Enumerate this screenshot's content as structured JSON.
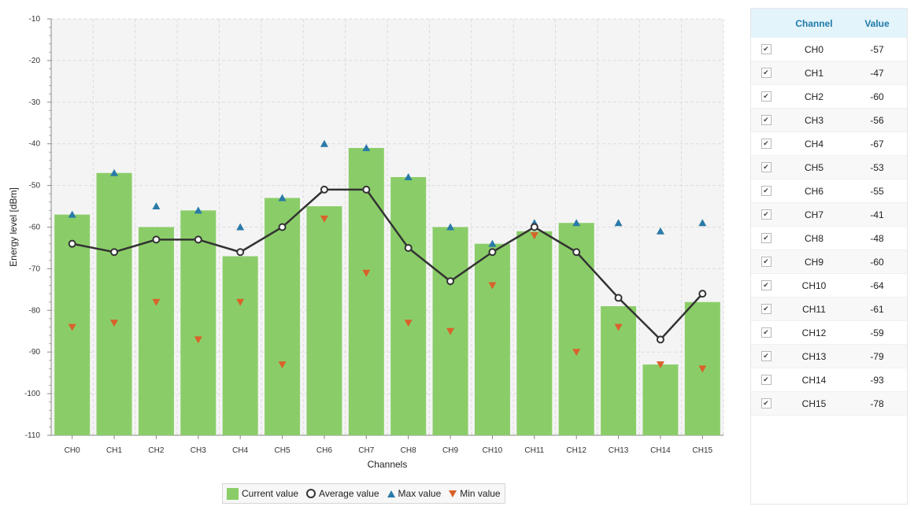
{
  "chart_data": {
    "type": "bar",
    "categories": [
      "CH0",
      "CH1",
      "CH2",
      "CH3",
      "CH4",
      "CH5",
      "CH6",
      "CH7",
      "CH8",
      "CH9",
      "CH10",
      "CH11",
      "CH12",
      "CH13",
      "CH14",
      "CH15"
    ],
    "series": [
      {
        "name": "Current value",
        "type": "bar",
        "values": [
          -57,
          -47,
          -60,
          -56,
          -67,
          -53,
          -55,
          -41,
          -48,
          -60,
          -64,
          -61,
          -59,
          -79,
          -93,
          -78
        ]
      },
      {
        "name": "Average value",
        "type": "line",
        "values": [
          -64,
          -66,
          -63,
          -63,
          -66,
          -60,
          -51,
          -51,
          -65,
          -73,
          -66,
          -60,
          -66,
          -77,
          -87,
          -76
        ]
      },
      {
        "name": "Max value",
        "type": "scatter",
        "values": [
          -57,
          -47,
          -55,
          -56,
          -60,
          -53,
          -40,
          -41,
          -48,
          -60,
          -64,
          -59,
          -59,
          -59,
          -61,
          -59
        ]
      },
      {
        "name": "Min value",
        "type": "scatter",
        "values": [
          -84,
          -83,
          -78,
          -87,
          -78,
          -93,
          -58,
          -71,
          -83,
          -85,
          -74,
          -62,
          -90,
          -84,
          -93,
          -94
        ]
      }
    ],
    "xlabel": "Channels",
    "ylabel": "Energy level [dBm]",
    "ylim": [
      -110,
      -10
    ],
    "yticks": [
      -10,
      -20,
      -30,
      -40,
      -50,
      -60,
      -70,
      -80,
      -90,
      -100,
      -110
    ],
    "grid": true,
    "legend": "bottom"
  },
  "colors": {
    "bar": "#8acd68",
    "line": "#333333",
    "max": "#2a7aa8",
    "min": "#d9622b",
    "plot_bg": "#f4f4f4",
    "header_bg": "#e3f4fb",
    "header_text": "#1f7aa8"
  },
  "legend": {
    "current": "Current value",
    "average": "Average value",
    "max": "Max value",
    "min": "Min value"
  },
  "table": {
    "headers": {
      "channel": "Channel",
      "value": "Value"
    },
    "rows": [
      {
        "channel": "CH0",
        "value": "-57",
        "checked": true
      },
      {
        "channel": "CH1",
        "value": "-47",
        "checked": true
      },
      {
        "channel": "CH2",
        "value": "-60",
        "checked": true
      },
      {
        "channel": "CH3",
        "value": "-56",
        "checked": true
      },
      {
        "channel": "CH4",
        "value": "-67",
        "checked": true
      },
      {
        "channel": "CH5",
        "value": "-53",
        "checked": true
      },
      {
        "channel": "CH6",
        "value": "-55",
        "checked": true
      },
      {
        "channel": "CH7",
        "value": "-41",
        "checked": true
      },
      {
        "channel": "CH8",
        "value": "-48",
        "checked": true
      },
      {
        "channel": "CH9",
        "value": "-60",
        "checked": true
      },
      {
        "channel": "CH10",
        "value": "-64",
        "checked": true
      },
      {
        "channel": "CH11",
        "value": "-61",
        "checked": true
      },
      {
        "channel": "CH12",
        "value": "-59",
        "checked": true
      },
      {
        "channel": "CH13",
        "value": "-79",
        "checked": true
      },
      {
        "channel": "CH14",
        "value": "-93",
        "checked": true
      },
      {
        "channel": "CH15",
        "value": "-78",
        "checked": true
      }
    ]
  }
}
